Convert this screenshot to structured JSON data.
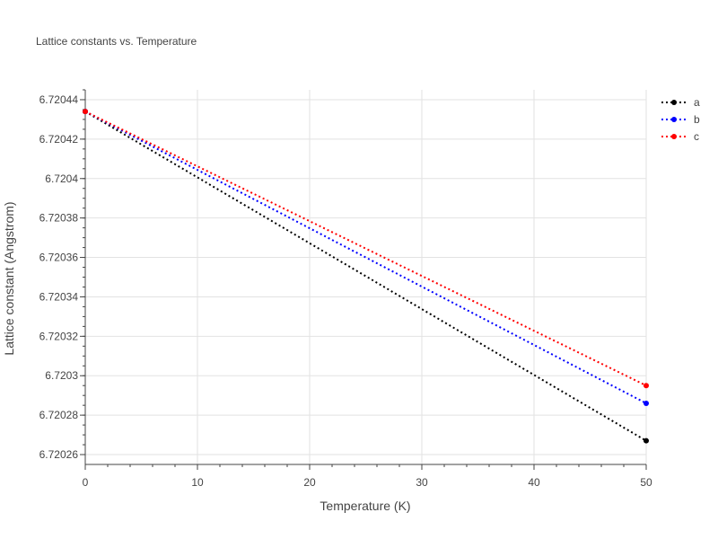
{
  "chart_data": {
    "type": "line",
    "title": "Lattice constants vs. Temperature",
    "xlabel": "Temperature (K)",
    "ylabel": "Lattice constant (Angstrom)",
    "xlim": [
      0,
      50
    ],
    "ylim": [
      6.720255,
      6.720445
    ],
    "x_ticks": [
      0,
      10,
      20,
      30,
      40,
      50
    ],
    "x_tick_labels": [
      "0",
      "10",
      "20",
      "30",
      "40",
      "50"
    ],
    "y_ticks": [
      6.72026,
      6.72028,
      6.7203,
      6.72032,
      6.72034,
      6.72036,
      6.72038,
      6.7204,
      6.72042,
      6.72044
    ],
    "y_tick_labels": [
      "6.72026",
      "6.72028",
      "6.7203",
      "6.72032",
      "6.72034",
      "6.72036",
      "6.72038",
      "6.7204",
      "6.72042",
      "6.72044"
    ],
    "grid": true,
    "legend_position": "top-right",
    "series": [
      {
        "name": "a",
        "color": "#000000",
        "x": [
          0,
          50
        ],
        "y": [
          6.720434,
          6.720267
        ]
      },
      {
        "name": "b",
        "color": "#0000ff",
        "x": [
          0,
          50
        ],
        "y": [
          6.720434,
          6.720286
        ]
      },
      {
        "name": "c",
        "color": "#ff0000",
        "x": [
          0,
          50
        ],
        "y": [
          6.720434,
          6.720295
        ]
      }
    ]
  }
}
